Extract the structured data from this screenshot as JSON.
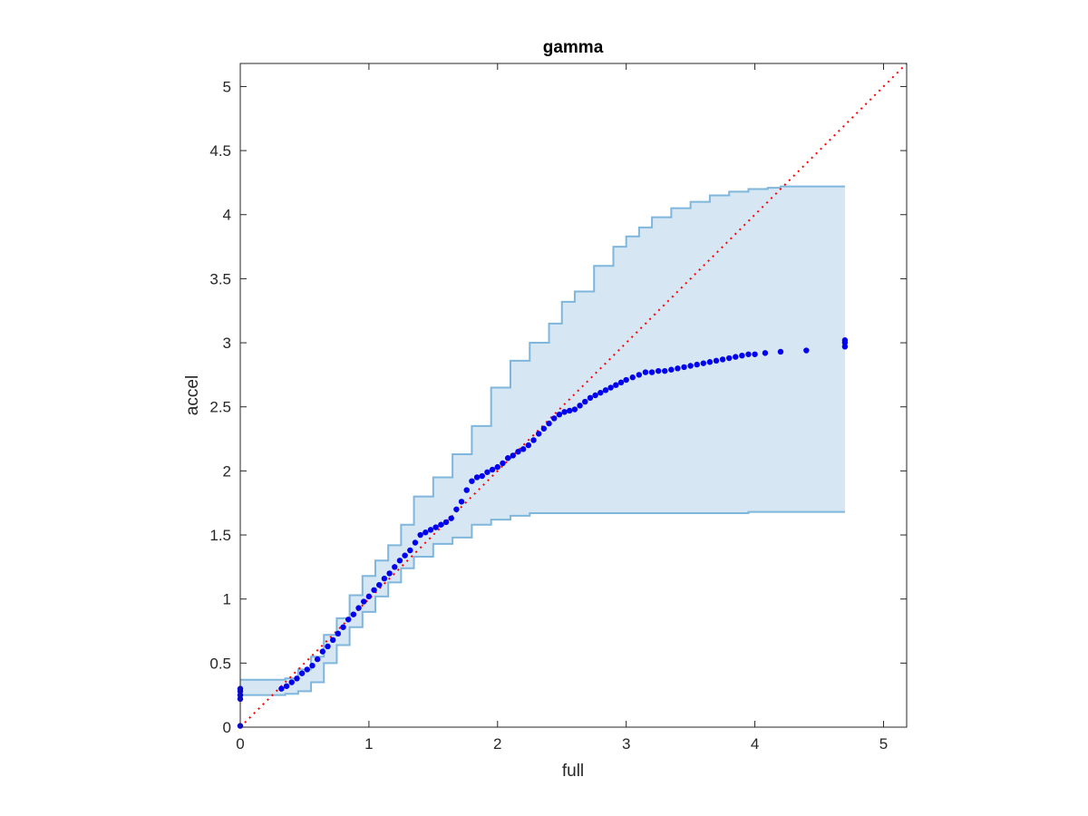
{
  "chart_data": {
    "type": "scatter",
    "title": "gamma",
    "xlabel": "full",
    "ylabel": "accel",
    "xlim": [
      0,
      5.18
    ],
    "ylim": [
      0,
      5.18
    ],
    "xticks": [
      0,
      1,
      2,
      3,
      4,
      5
    ],
    "yticks": [
      0,
      0.5,
      1,
      1.5,
      2,
      2.5,
      3,
      3.5,
      4,
      4.5,
      5
    ],
    "xticklabels": [
      "0",
      "1",
      "2",
      "3",
      "4",
      "5"
    ],
    "yticklabels": [
      "0",
      "0.5",
      "1",
      "1.5",
      "2",
      "2.5",
      "3",
      "3.5",
      "4",
      "4.5",
      "5"
    ],
    "grid": false,
    "colors": {
      "points": "#0000ee",
      "band_fill": "#d6e6f3",
      "band_edge": "#7fb6dc",
      "reference": "#ff0000",
      "axes": "#262626"
    },
    "reference_line": {
      "x": [
        0,
        5.18
      ],
      "y": [
        0,
        5.18
      ],
      "style": "dotted"
    },
    "band": {
      "x": [
        0,
        0.1,
        0.2,
        0.28,
        0.35,
        0.45,
        0.55,
        0.65,
        0.75,
        0.85,
        0.95,
        1.05,
        1.15,
        1.25,
        1.35,
        1.5,
        1.65,
        1.8,
        1.95,
        2.1,
        2.25,
        2.4,
        2.5,
        2.6,
        2.75,
        2.9,
        3.0,
        3.1,
        3.2,
        3.35,
        3.5,
        3.65,
        3.8,
        3.95,
        4.1,
        4.2,
        4.3,
        4.5,
        4.7
      ],
      "upper": [
        0.37,
        0.37,
        0.37,
        0.37,
        0.38,
        0.45,
        0.55,
        0.72,
        0.85,
        1.03,
        1.18,
        1.3,
        1.42,
        1.58,
        1.8,
        1.95,
        2.13,
        2.35,
        2.65,
        2.86,
        3.0,
        3.15,
        3.32,
        3.4,
        3.6,
        3.75,
        3.83,
        3.9,
        3.98,
        4.05,
        4.1,
        4.15,
        4.18,
        4.2,
        4.21,
        4.22,
        4.22,
        4.22,
        4.22
      ],
      "lower": [
        0.25,
        0.25,
        0.25,
        0.25,
        0.26,
        0.28,
        0.35,
        0.5,
        0.64,
        0.78,
        0.9,
        1.02,
        1.13,
        1.24,
        1.33,
        1.43,
        1.48,
        1.58,
        1.62,
        1.65,
        1.67,
        1.67,
        1.67,
        1.67,
        1.67,
        1.67,
        1.67,
        1.67,
        1.67,
        1.67,
        1.67,
        1.67,
        1.67,
        1.68,
        1.68,
        1.68,
        1.68,
        1.68,
        1.68
      ]
    },
    "series": [
      {
        "x": [
          0,
          0,
          0,
          0,
          0,
          0.32,
          0.36,
          0.4,
          0.44,
          0.48,
          0.52,
          0.56,
          0.6,
          0.64,
          0.68,
          0.72,
          0.76,
          0.8,
          0.84,
          0.88,
          0.92,
          0.96,
          1.0,
          1.04,
          1.08,
          1.12,
          1.16,
          1.2,
          1.24,
          1.28,
          1.32,
          1.36,
          1.4,
          1.44,
          1.48,
          1.52,
          1.56,
          1.6,
          1.64,
          1.68,
          1.72,
          1.76,
          1.8,
          1.84,
          1.88,
          1.92,
          1.96,
          2.0,
          2.04,
          2.08,
          2.12,
          2.16,
          2.2,
          2.24,
          2.28,
          2.32,
          2.36,
          2.4,
          2.44,
          2.48,
          2.52,
          2.56,
          2.6,
          2.64,
          2.68,
          2.72,
          2.76,
          2.8,
          2.84,
          2.88,
          2.92,
          2.96,
          3.0,
          3.05,
          3.1,
          3.15,
          3.2,
          3.25,
          3.3,
          3.35,
          3.4,
          3.45,
          3.5,
          3.55,
          3.6,
          3.65,
          3.7,
          3.75,
          3.8,
          3.85,
          3.9,
          3.95,
          4.0,
          4.08,
          4.2,
          4.4,
          4.7,
          4.7,
          4.7
        ],
        "y": [
          0.22,
          0.25,
          0.28,
          0.3,
          0.01,
          0.3,
          0.32,
          0.35,
          0.38,
          0.42,
          0.45,
          0.48,
          0.53,
          0.59,
          0.63,
          0.68,
          0.73,
          0.78,
          0.84,
          0.88,
          0.93,
          0.98,
          1.02,
          1.07,
          1.11,
          1.16,
          1.2,
          1.25,
          1.3,
          1.34,
          1.38,
          1.44,
          1.5,
          1.52,
          1.54,
          1.56,
          1.58,
          1.6,
          1.63,
          1.7,
          1.76,
          1.85,
          1.92,
          1.95,
          1.96,
          1.99,
          2.01,
          2.03,
          2.06,
          2.1,
          2.12,
          2.15,
          2.17,
          2.2,
          2.24,
          2.29,
          2.33,
          2.37,
          2.41,
          2.44,
          2.46,
          2.47,
          2.48,
          2.51,
          2.54,
          2.57,
          2.59,
          2.61,
          2.63,
          2.65,
          2.67,
          2.69,
          2.71,
          2.73,
          2.75,
          2.77,
          2.77,
          2.78,
          2.78,
          2.79,
          2.8,
          2.81,
          2.82,
          2.83,
          2.84,
          2.85,
          2.86,
          2.87,
          2.88,
          2.89,
          2.9,
          2.91,
          2.91,
          2.92,
          2.93,
          2.94,
          2.97,
          3.0,
          3.02
        ]
      }
    ]
  }
}
